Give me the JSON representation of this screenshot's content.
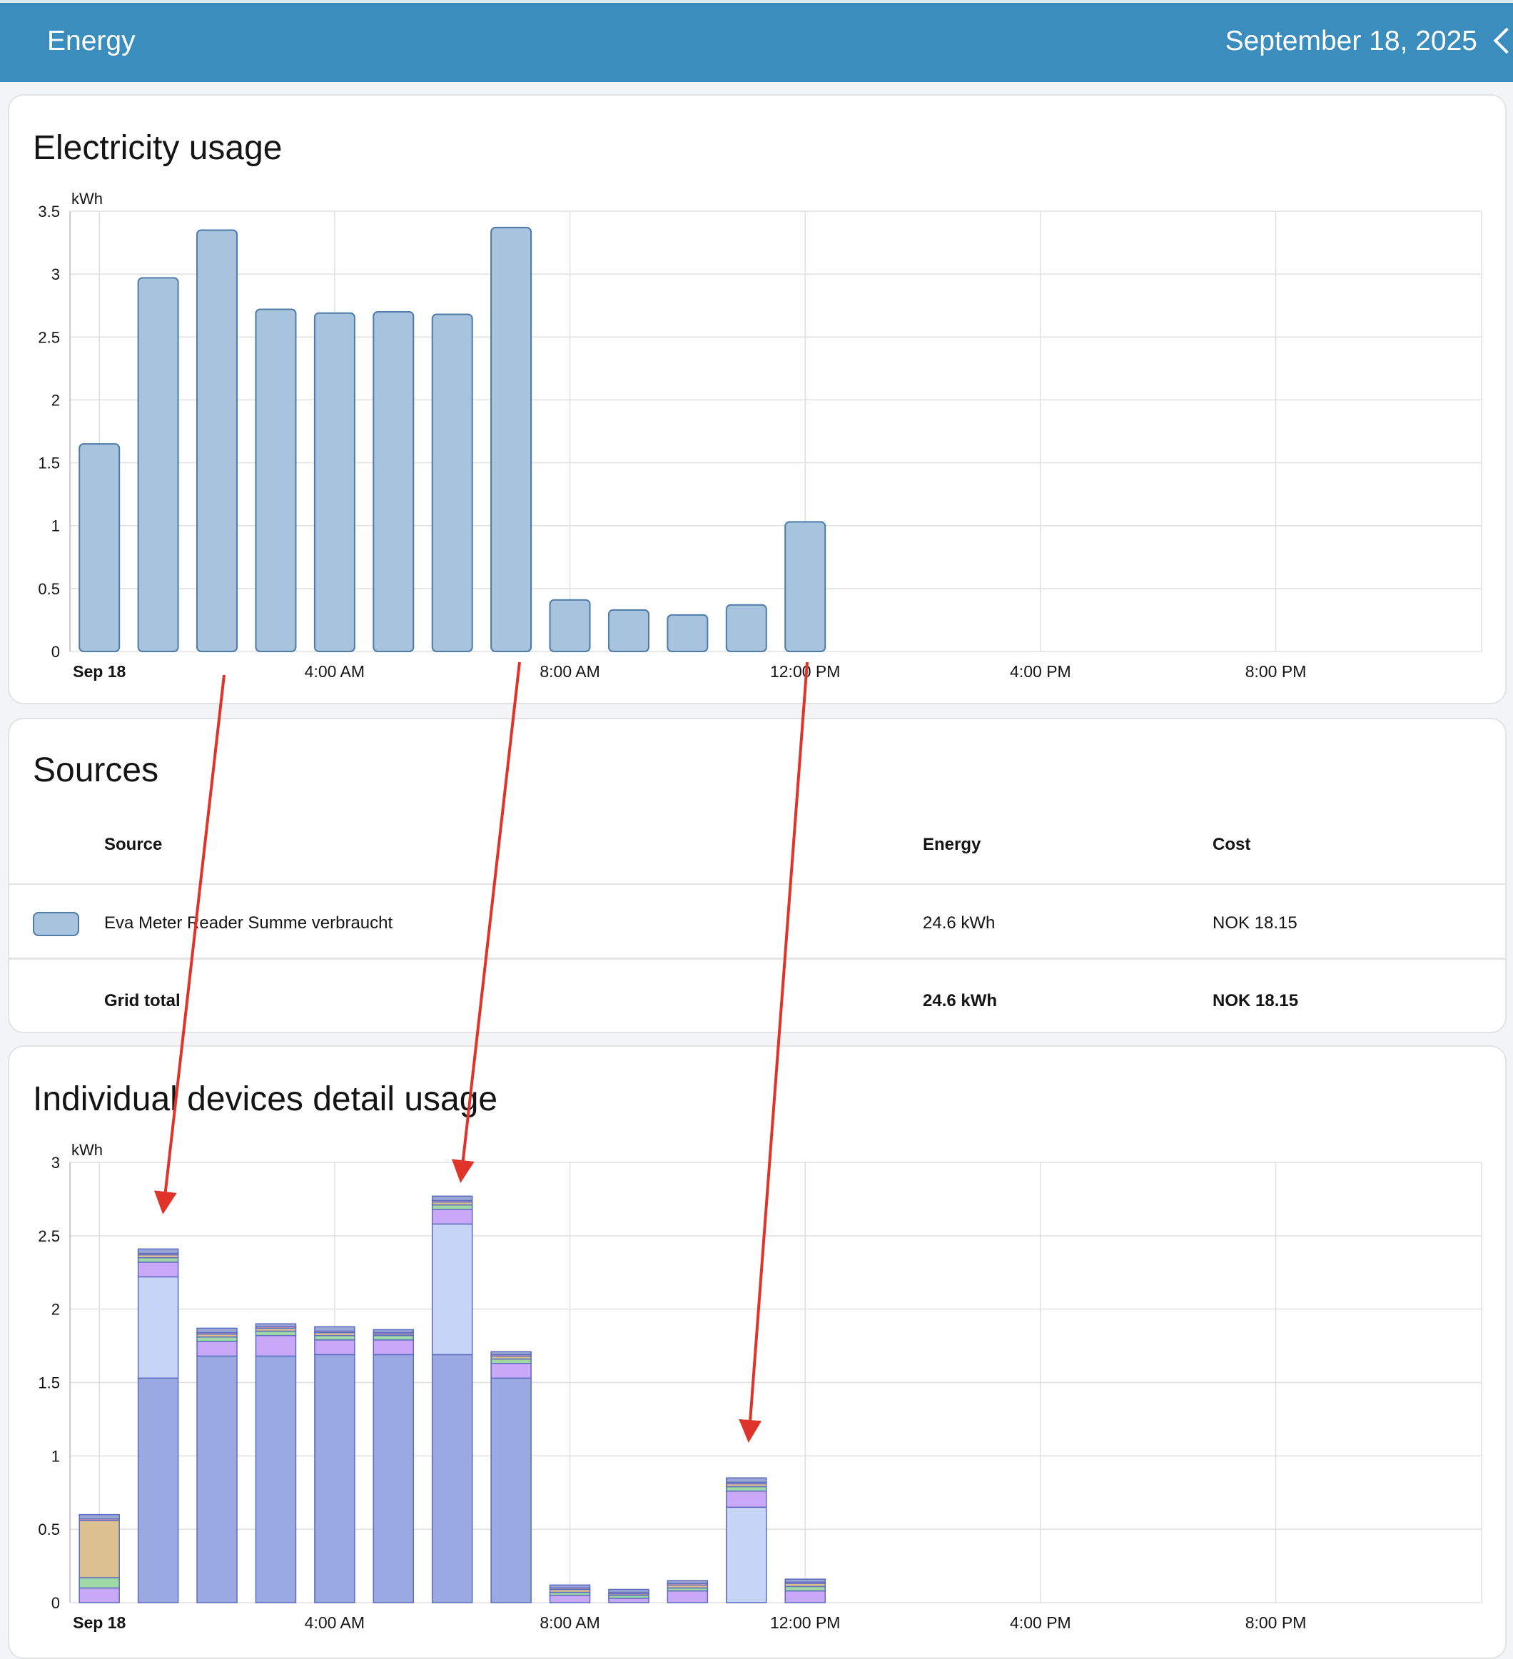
{
  "header": {
    "title": "Energy",
    "date": "September 18, 2025"
  },
  "cards": {
    "electricity": {
      "title": "Electricity usage"
    },
    "sources": {
      "title": "Sources",
      "columns": {
        "source": "Source",
        "energy": "Energy",
        "cost": "Cost"
      },
      "rows": [
        {
          "name": "Eva Meter Reader Summe verbraucht",
          "energy": "24.6 kWh",
          "cost": "NOK 18.15",
          "color": "#a8c3dd"
        }
      ],
      "total": {
        "name": "Grid total",
        "energy": "24.6 kWh",
        "cost": "NOK 18.15"
      }
    },
    "devices": {
      "title": "Individual devices detail usage"
    }
  },
  "chart_data": [
    {
      "type": "bar",
      "title": "Electricity usage",
      "ylabel": "kWh",
      "ylim": [
        0,
        3.5
      ],
      "yticks": [
        "0",
        "0.5",
        "1",
        "1.5",
        "2",
        "2.5",
        "3",
        "3.5"
      ],
      "xticks": [
        "Sep 18",
        "4:00 AM",
        "8:00 AM",
        "12:00 PM",
        "4:00 PM",
        "8:00 PM"
      ],
      "x": [
        0,
        1,
        2,
        3,
        4,
        5,
        6,
        7,
        8,
        9,
        10,
        11,
        12
      ],
      "values": [
        1.65,
        2.97,
        3.35,
        2.72,
        2.69,
        2.7,
        2.68,
        3.37,
        0.41,
        0.33,
        0.29,
        0.37,
        1.03
      ],
      "color": "#a8c3dd",
      "grid": true
    },
    {
      "type": "bar",
      "stacked": true,
      "title": "Individual devices detail usage",
      "ylabel": "kWh",
      "ylim": [
        0,
        3
      ],
      "yticks": [
        "0",
        "0.5",
        "1",
        "1.5",
        "2",
        "2.5",
        "3"
      ],
      "xticks": [
        "Sep 18",
        "4:00 AM",
        "8:00 AM",
        "12:00 PM",
        "4:00 PM",
        "8:00 PM"
      ],
      "x": [
        0,
        1,
        2,
        3,
        4,
        5,
        6,
        7,
        8,
        9,
        10,
        11,
        12
      ],
      "grid": true,
      "series": [
        {
          "color": "#9ba9e2",
          "values": [
            0,
            1.53,
            1.68,
            1.68,
            1.69,
            1.69,
            1.69,
            1.53,
            0,
            0,
            0,
            0,
            0
          ]
        },
        {
          "color": "#c6d4f5",
          "values": [
            0,
            0.69,
            0,
            0,
            0,
            0,
            0.89,
            0,
            0,
            0,
            0,
            0.65,
            0
          ]
        },
        {
          "color": "#c9a9f7",
          "values": [
            0.1,
            0.1,
            0.1,
            0.14,
            0.1,
            0.1,
            0.1,
            0.1,
            0.05,
            0.03,
            0.08,
            0.11,
            0.08
          ]
        },
        {
          "color": "#9fd9a3",
          "values": [
            0.07,
            0.03,
            0.03,
            0.03,
            0.03,
            0.03,
            0.03,
            0.03,
            0.02,
            0.02,
            0.02,
            0.03,
            0.03
          ]
        },
        {
          "color": "#dcc08f",
          "values": [
            0.39,
            0.02,
            0.02,
            0.02,
            0.02,
            0.01,
            0.02,
            0.02,
            0.02,
            0.01,
            0.02,
            0.02,
            0.02
          ]
        },
        {
          "color": "#f3b1b1",
          "values": [
            0.01,
            0.01,
            0.01,
            0.01,
            0.01,
            0.01,
            0.01,
            0.01,
            0.01,
            0.01,
            0.01,
            0.01,
            0.01
          ]
        },
        {
          "color": "#9aa6d6",
          "values": [
            0.03,
            0.03,
            0.03,
            0.02,
            0.03,
            0.02,
            0.03,
            0.02,
            0.02,
            0.02,
            0.02,
            0.03,
            0.02
          ]
        }
      ]
    }
  ],
  "annotations": {
    "arrow_color": "#e0342a"
  }
}
